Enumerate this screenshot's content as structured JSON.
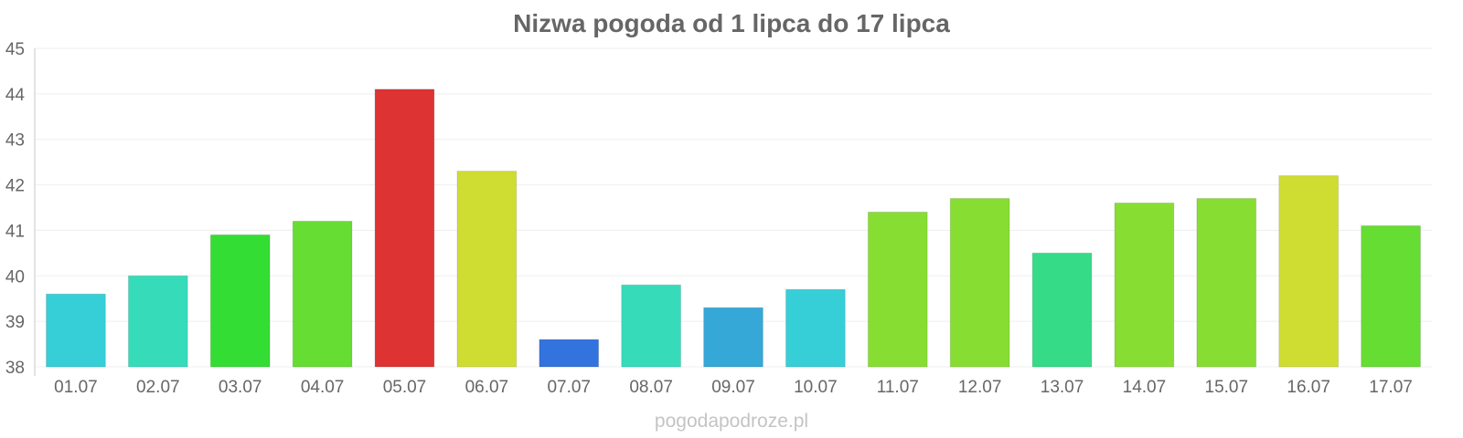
{
  "chart_data": {
    "type": "bar",
    "title": "Nizwa pogoda od 1 lipca do 17 lipca",
    "xlabel": "",
    "ylabel": "",
    "ylim": [
      38,
      45
    ],
    "yticks": [
      38,
      39,
      40,
      41,
      42,
      43,
      44,
      45
    ],
    "grid": true,
    "categories": [
      "01.07",
      "02.07",
      "03.07",
      "04.07",
      "05.07",
      "06.07",
      "07.07",
      "08.07",
      "09.07",
      "10.07",
      "11.07",
      "12.07",
      "13.07",
      "14.07",
      "15.07",
      "16.07",
      "17.07"
    ],
    "values": [
      39.6,
      40.0,
      40.9,
      41.2,
      44.1,
      42.3,
      38.6,
      39.8,
      39.3,
      39.7,
      41.4,
      41.7,
      40.5,
      41.6,
      41.7,
      42.2,
      41.1
    ],
    "colors": [
      "#36cfd8",
      "#36dcba",
      "#33dd33",
      "#66dd33",
      "#dd3333",
      "#cfdd33",
      "#3373dd",
      "#36dcba",
      "#36a8d8",
      "#36cfd8",
      "#88dd33",
      "#88dd33",
      "#36db88",
      "#88dd33",
      "#88dd33",
      "#cfdd33",
      "#66dd33"
    ]
  },
  "watermark": "pogodapodroze.pl"
}
